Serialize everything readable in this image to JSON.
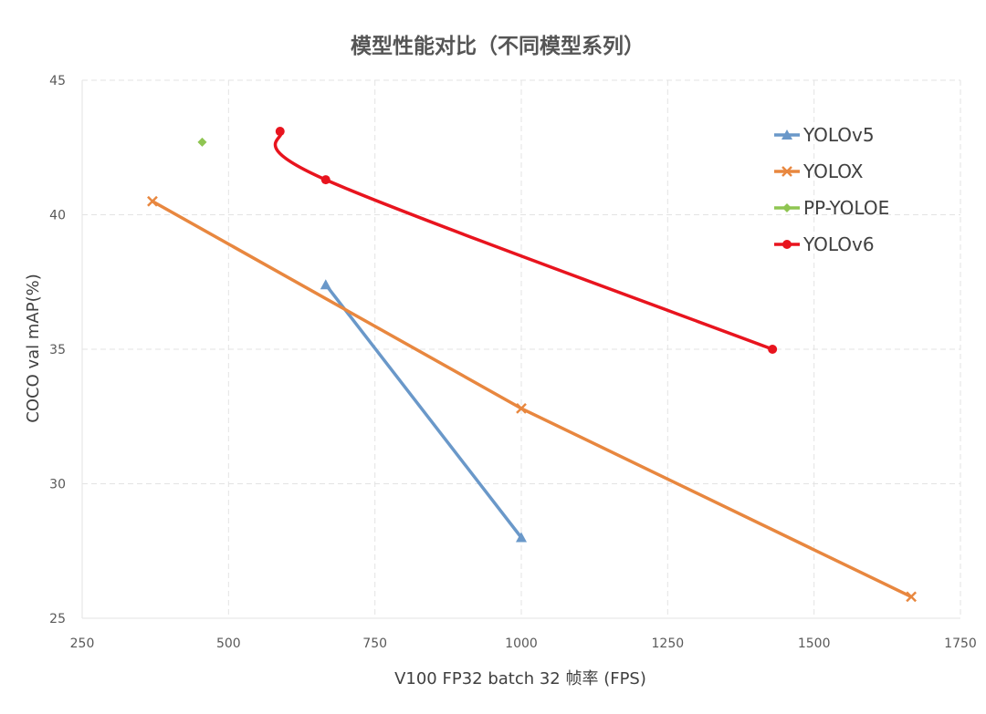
{
  "chart_data": {
    "type": "scatter",
    "title": "模型性能对比（不同模型系列）",
    "xlabel": "V100 FP32 batch 32 帧率 (FPS)",
    "ylabel": "COCO val mAP(%)",
    "xlim": [
      250,
      1750
    ],
    "ylim": [
      25,
      45
    ],
    "xticks": [
      "250",
      "500",
      "750",
      "1000",
      "1250",
      "1500",
      "1750"
    ],
    "yticks": [
      "25",
      "30",
      "35",
      "40",
      "45"
    ],
    "grid": true,
    "legend_position": "top-right",
    "series": [
      {
        "name": "YOLOv5",
        "color": "#6a98c9",
        "marker": "triangle",
        "smooth": false,
        "points": [
          [
            666,
            37.4
          ],
          [
            1000,
            28.0
          ]
        ]
      },
      {
        "name": "YOLOX",
        "color": "#e8873f",
        "marker": "x",
        "smooth": false,
        "points": [
          [
            370,
            40.5
          ],
          [
            1000,
            32.8
          ],
          [
            1666,
            25.8
          ]
        ]
      },
      {
        "name": "PP-YOLOE",
        "color": "#8fc552",
        "marker": "diamond",
        "smooth": false,
        "points": [
          [
            455,
            42.7
          ]
        ]
      },
      {
        "name": "YOLOv6",
        "color": "#e8141e",
        "marker": "circle",
        "smooth": true,
        "points": [
          [
            588,
            43.1
          ],
          [
            666,
            41.3
          ],
          [
            1429,
            35.0
          ]
        ]
      }
    ]
  }
}
